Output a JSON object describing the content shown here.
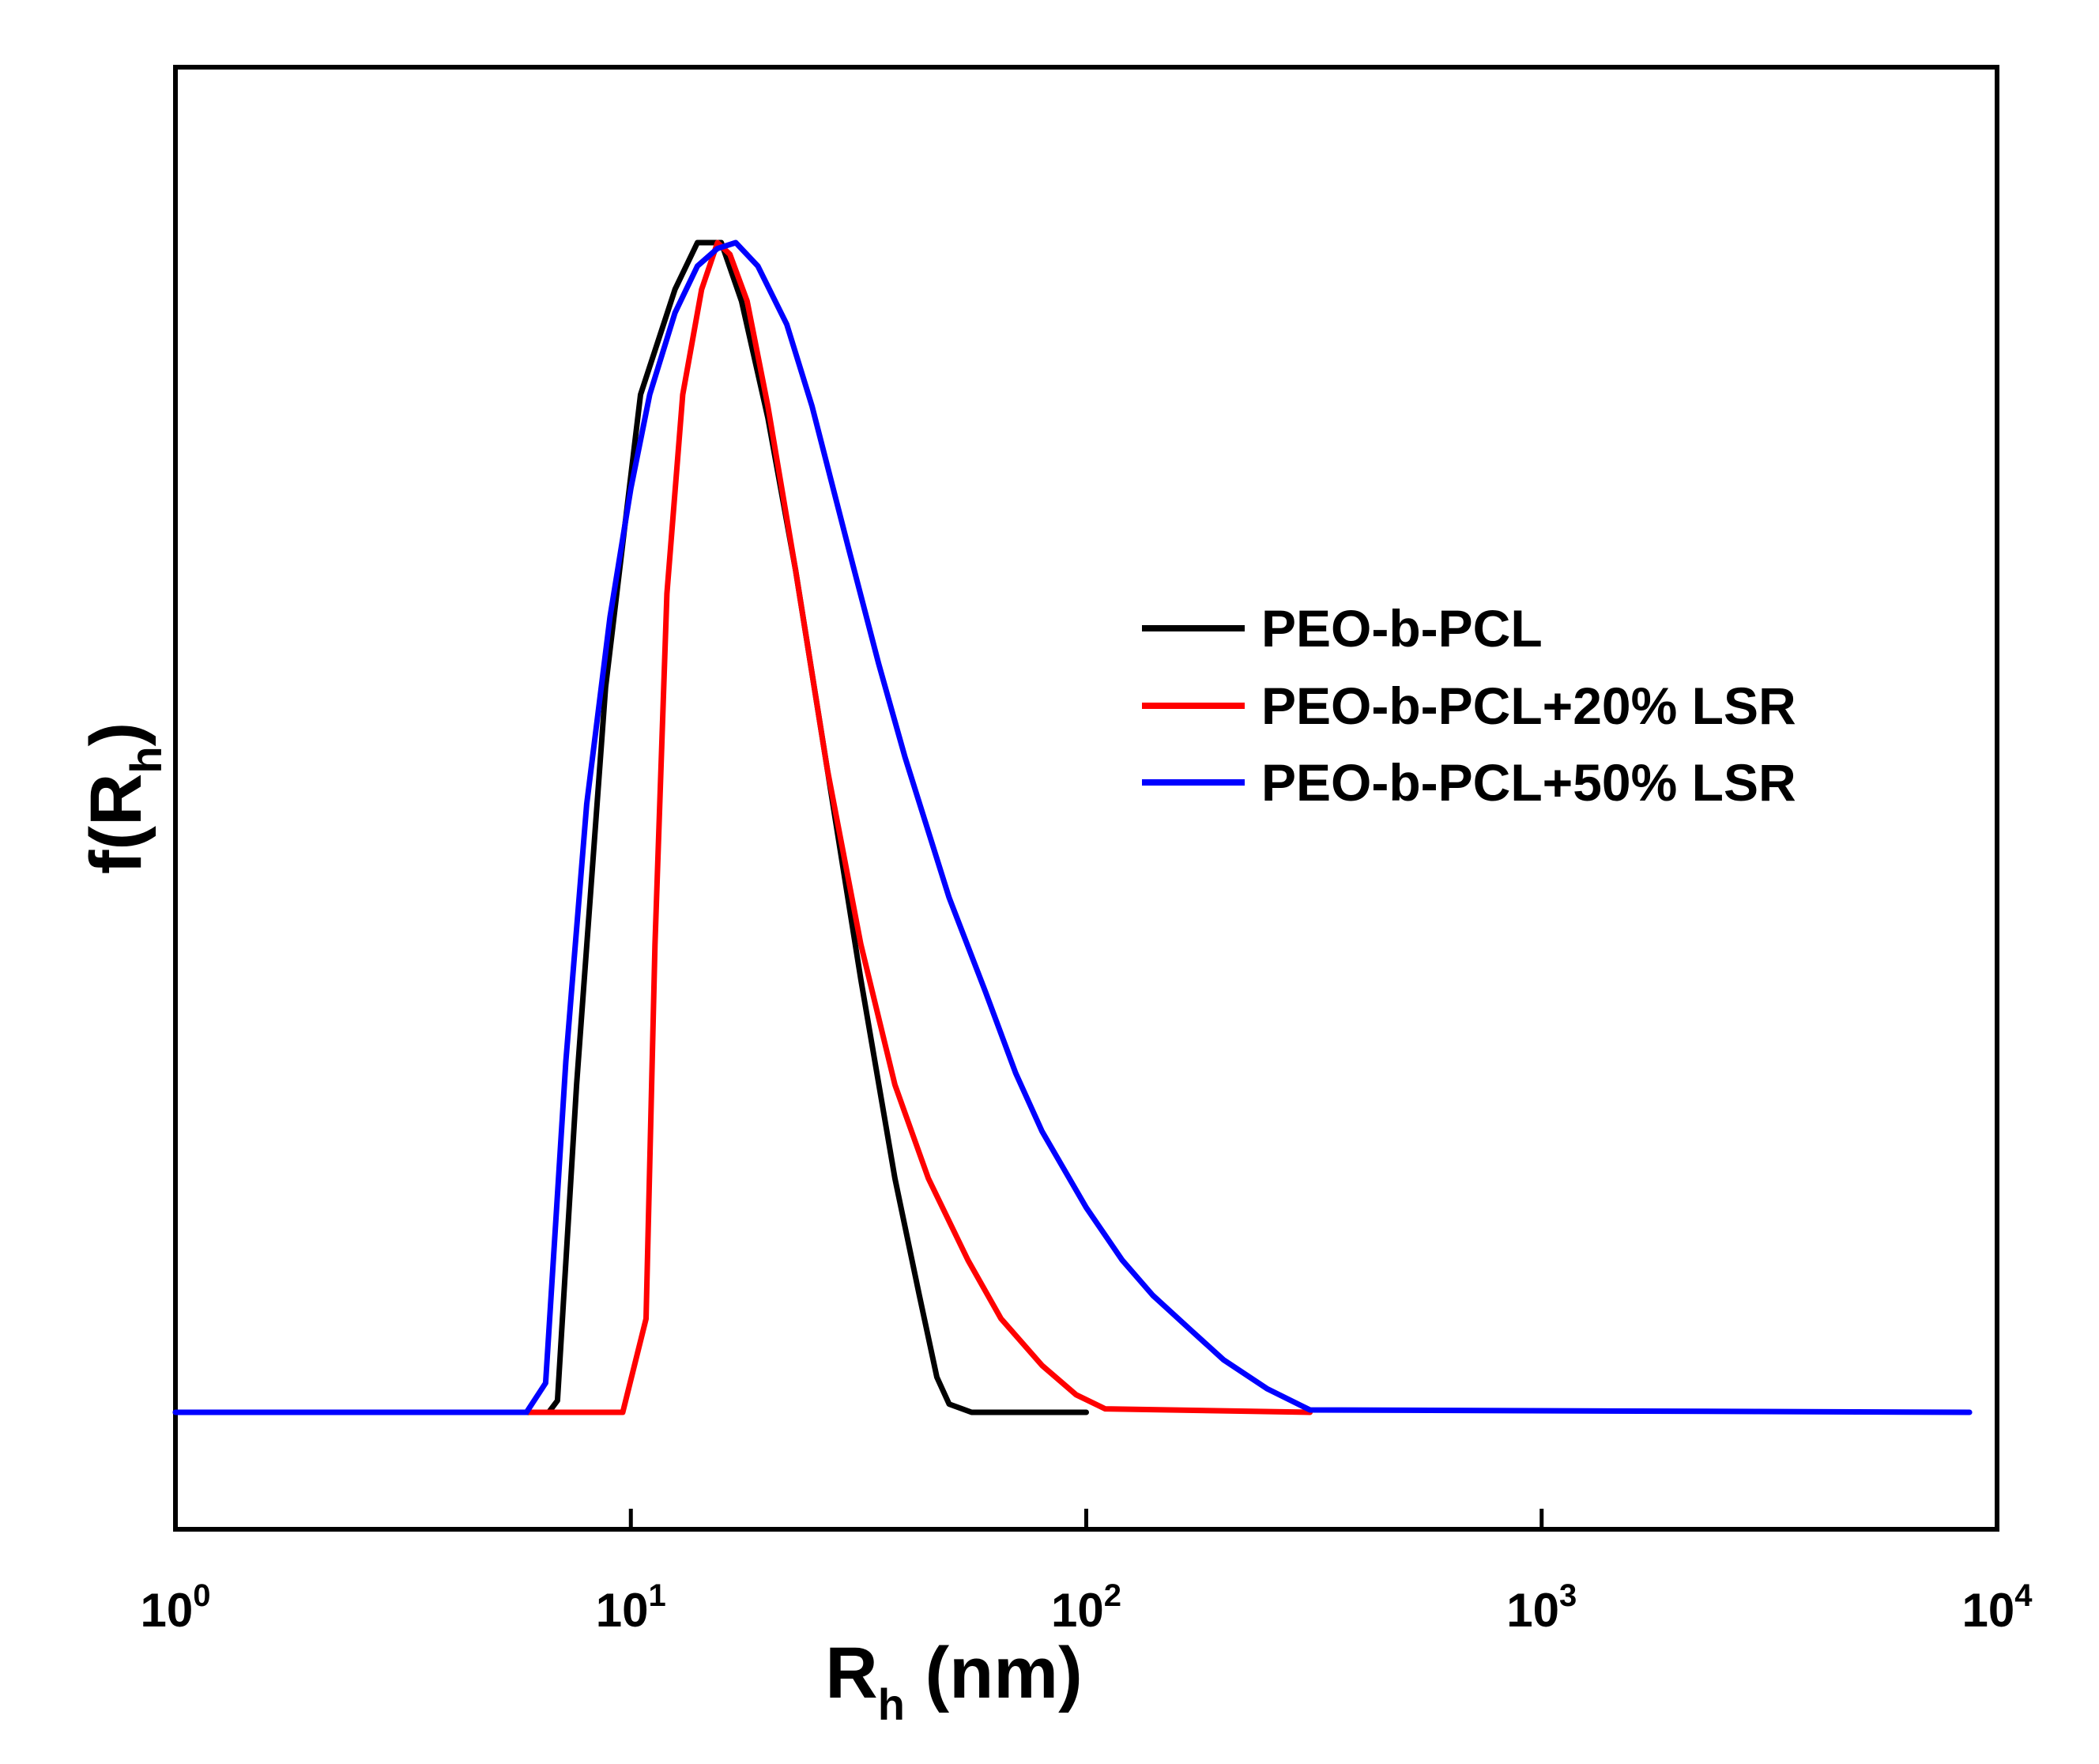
{
  "chart_data": {
    "type": "line",
    "xscale": "log",
    "xlim": [
      1,
      10000
    ],
    "ylim": [
      -0.1,
      1.15
    ],
    "grid": false,
    "legend_position": "center-right",
    "xlabel": {
      "main": "R",
      "sub": "h",
      "rest": " (nm)"
    },
    "ylabel": {
      "main": "f(R",
      "sub": "h",
      "rest": ")"
    },
    "x_ticks": [
      {
        "value": 1,
        "base": "10",
        "exp": "0"
      },
      {
        "value": 10,
        "base": "10",
        "exp": "1"
      },
      {
        "value": 100,
        "base": "10",
        "exp": "2"
      },
      {
        "value": 1000,
        "base": "10",
        "exp": "3"
      },
      {
        "value": 10000,
        "base": "10",
        "exp": "4"
      }
    ],
    "series": [
      {
        "name": "PEO-b-PCL",
        "color": "#000000",
        "x": [
          1.0,
          6.6,
          6.9,
          7.6,
          8.8,
          10.5,
          12.5,
          14.0,
          15.8,
          17.5,
          20.0,
          23.0,
          27.0,
          32.0,
          38.0,
          43.0,
          47.0,
          50.0,
          56.0,
          100.0
        ],
        "y": [
          0,
          0,
          0.01,
          0.28,
          0.62,
          0.87,
          0.96,
          1.0,
          1.0,
          0.95,
          0.85,
          0.72,
          0.55,
          0.37,
          0.2,
          0.1,
          0.03,
          0.007,
          0,
          0
        ]
      },
      {
        "name": "PEO-b-PCL+20% LSR",
        "color": "#ff0000",
        "x": [
          6.0,
          9.6,
          10.8,
          11.3,
          12.0,
          13.0,
          14.3,
          15.5,
          16.5,
          18.0,
          20.0,
          23.0,
          27.0,
          32.0,
          38.0,
          45.0,
          55.0,
          65.0,
          80.0,
          95.0,
          110.0,
          310.0
        ],
        "y": [
          0,
          0,
          0.08,
          0.4,
          0.7,
          0.87,
          0.96,
          1.0,
          0.99,
          0.95,
          0.86,
          0.72,
          0.55,
          0.4,
          0.28,
          0.2,
          0.13,
          0.08,
          0.04,
          0.015,
          0.003,
          0
        ]
      },
      {
        "name": "PEO-b-PCL+50% LSR",
        "color": "#0000ff",
        "x": [
          1.0,
          5.9,
          6.5,
          7.2,
          8.0,
          9.0,
          10.0,
          11.0,
          12.5,
          14.0,
          15.5,
          17.0,
          19.0,
          22.0,
          25.0,
          30.0,
          35.0,
          40.0,
          50.0,
          60.0,
          70.0,
          80.0,
          100.0,
          120.0,
          140.0,
          170.0,
          200.0,
          250.0,
          310.0,
          8700.0
        ],
        "y": [
          0,
          0,
          0.025,
          0.3,
          0.52,
          0.68,
          0.79,
          0.87,
          0.94,
          0.98,
          0.995,
          1.0,
          0.98,
          0.93,
          0.86,
          0.74,
          0.64,
          0.56,
          0.44,
          0.36,
          0.29,
          0.24,
          0.175,
          0.13,
          0.1,
          0.07,
          0.045,
          0.02,
          0.002,
          0
        ]
      }
    ]
  }
}
